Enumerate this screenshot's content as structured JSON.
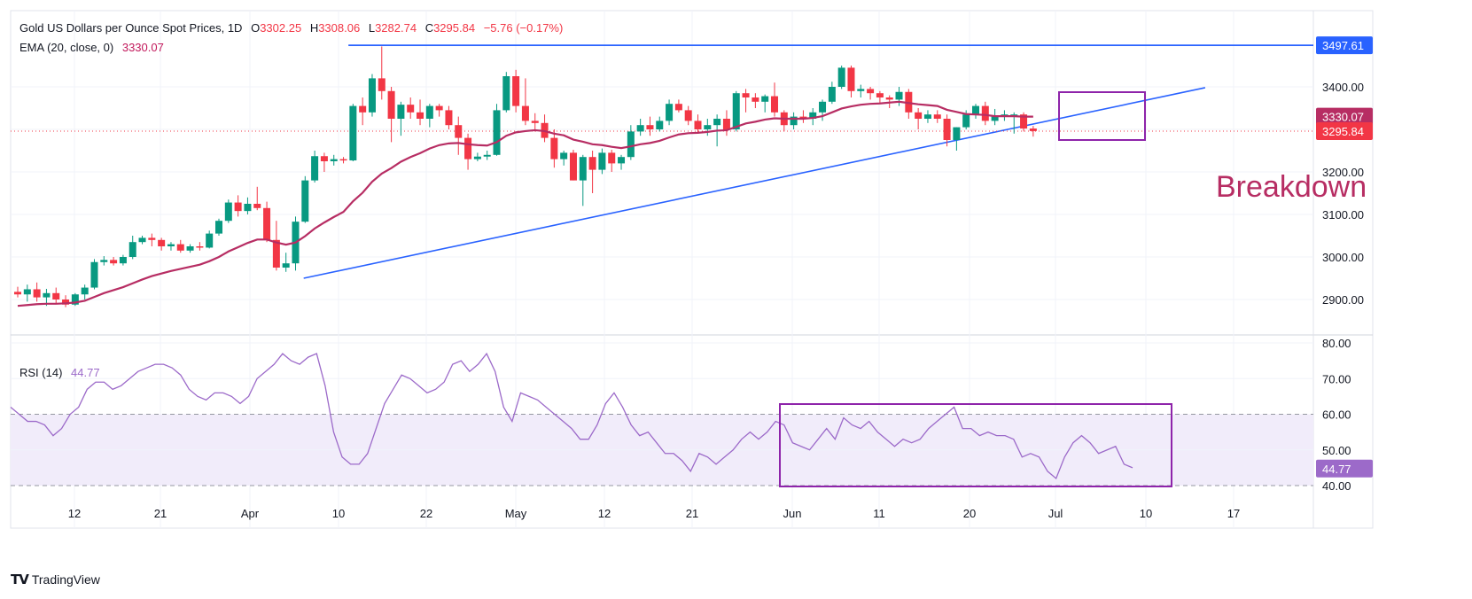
{
  "legend": {
    "title": "Gold US Dollars per Ounce Spot Prices, 1D",
    "o_label": "O",
    "o_value": "3302.25",
    "h_label": "H",
    "h_value": "3308.06",
    "l_label": "L",
    "l_value": "3282.74",
    "c_label": "C",
    "c_value": "3295.84",
    "change": "−5.76 (−0.17%)",
    "ema_label": "EMA (20, close, 0)",
    "ema_value": "3330.07",
    "rsi_label": "RSI (14)",
    "rsi_value": "44.77"
  },
  "annotation": "Breakdown",
  "branding": {
    "logo": "TV",
    "name": "TradingView"
  },
  "colors": {
    "up": "#089981",
    "down": "#f23645",
    "ema": "#b72d63",
    "trendline": "#2962ff",
    "rsi_line": "#9c6ac9",
    "rsi_band": "#f1ecfa",
    "box": "#8e24aa",
    "annotation": "#b72d63"
  },
  "chart_data": [
    {
      "type": "candlestick",
      "title": "Gold US Dollars per Ounce Spot Prices, 1D",
      "x_tick_labels": [
        "12",
        "21",
        "Apr",
        "10",
        "22",
        "May",
        "12",
        "21",
        "Jun",
        "11",
        "20",
        "Jul",
        "10",
        "17"
      ],
      "y_tick_labels": [
        "3400.00",
        "3300.00",
        "3200.00",
        "3100.00",
        "3000.00",
        "2900.00"
      ],
      "ylim": [
        2880,
        3520
      ],
      "grid": true,
      "price_tags": [
        {
          "label": "3497.61",
          "value": 3497.61,
          "color": "#2962ff"
        },
        {
          "label": "3330.07",
          "value": 3330.07,
          "color": "#b72d63"
        },
        {
          "label": "3295.84",
          "value": 3295.84,
          "color": "#f23645"
        }
      ],
      "resistance_line": {
        "value": 3497.61,
        "from_index": 36
      },
      "trendline": {
        "from": [
          28,
          2950
        ],
        "to": [
          111,
          3398
        ]
      },
      "candles": [
        [
          2918,
          2930,
          2905,
          2912
        ],
        [
          2912,
          2935,
          2895,
          2924
        ],
        [
          2924,
          2940,
          2895,
          2905
        ],
        [
          2905,
          2925,
          2885,
          2915
        ],
        [
          2915,
          2928,
          2890,
          2900
        ],
        [
          2900,
          2910,
          2882,
          2888
        ],
        [
          2888,
          2915,
          2885,
          2912
        ],
        [
          2912,
          2935,
          2900,
          2928
        ],
        [
          2928,
          2995,
          2924,
          2988
        ],
        [
          2988,
          3002,
          2980,
          2993
        ],
        [
          2993,
          3000,
          2980,
          2985
        ],
        [
          2985,
          3005,
          2980,
          3000
        ],
        [
          3000,
          3050,
          2995,
          3035
        ],
        [
          3035,
          3050,
          3030,
          3045
        ],
        [
          3045,
          3055,
          3025,
          3040
        ],
        [
          3040,
          3045,
          3015,
          3025
        ],
        [
          3025,
          3035,
          3015,
          3030
        ],
        [
          3030,
          3040,
          3010,
          3015
        ],
        [
          3015,
          3030,
          3010,
          3025
        ],
        [
          3025,
          3035,
          3015,
          3022
        ],
        [
          3022,
          3062,
          3020,
          3055
        ],
        [
          3055,
          3090,
          3050,
          3085
        ],
        [
          3085,
          3135,
          3080,
          3128
        ],
        [
          3128,
          3145,
          3095,
          3108
        ],
        [
          3108,
          3140,
          3100,
          3125
        ],
        [
          3125,
          3165,
          3110,
          3115
        ],
        [
          3115,
          3130,
          3035,
          3040
        ],
        [
          3040,
          3085,
          2968,
          2975
        ],
        [
          2975,
          3010,
          2965,
          2985
        ],
        [
          2985,
          3095,
          2968,
          3083
        ],
        [
          3083,
          3190,
          3080,
          3180
        ],
        [
          3180,
          3250,
          3175,
          3237
        ],
        [
          3237,
          3245,
          3200,
          3225
        ],
        [
          3225,
          3240,
          3215,
          3230
        ],
        [
          3230,
          3235,
          3220,
          3227
        ],
        [
          3227,
          3360,
          3225,
          3355
        ],
        [
          3355,
          3375,
          3310,
          3340
        ],
        [
          3340,
          3430,
          3330,
          3420
        ],
        [
          3420,
          3495,
          3370,
          3390
        ],
        [
          3390,
          3400,
          3270,
          3325
        ],
        [
          3325,
          3365,
          3285,
          3358
        ],
        [
          3358,
          3375,
          3325,
          3340
        ],
        [
          3340,
          3370,
          3310,
          3325
        ],
        [
          3325,
          3360,
          3305,
          3355
        ],
        [
          3355,
          3360,
          3330,
          3345
        ],
        [
          3345,
          3355,
          3300,
          3310
        ],
        [
          3310,
          3330,
          3240,
          3280
        ],
        [
          3280,
          3290,
          3205,
          3230
        ],
        [
          3230,
          3245,
          3225,
          3236
        ],
        [
          3236,
          3250,
          3228,
          3240
        ],
        [
          3240,
          3360,
          3238,
          3345
        ],
        [
          3345,
          3435,
          3340,
          3425
        ],
        [
          3425,
          3440,
          3340,
          3355
        ],
        [
          3355,
          3420,
          3310,
          3320
        ],
        [
          3320,
          3338,
          3295,
          3315
        ],
        [
          3315,
          3335,
          3270,
          3280
        ],
        [
          3280,
          3300,
          3210,
          3230
        ],
        [
          3230,
          3250,
          3215,
          3245
        ],
        [
          3245,
          3252,
          3180,
          3180
        ],
        [
          3180,
          3240,
          3120,
          3235
        ],
        [
          3235,
          3250,
          3150,
          3205
        ],
        [
          3205,
          3255,
          3195,
          3245
        ],
        [
          3245,
          3252,
          3200,
          3220
        ],
        [
          3220,
          3240,
          3205,
          3235
        ],
        [
          3235,
          3310,
          3228,
          3295
        ],
        [
          3295,
          3325,
          3285,
          3310
        ],
        [
          3310,
          3330,
          3285,
          3300
        ],
        [
          3300,
          3330,
          3295,
          3320
        ],
        [
          3320,
          3370,
          3310,
          3360
        ],
        [
          3360,
          3370,
          3340,
          3345
        ],
        [
          3345,
          3355,
          3310,
          3320
        ],
        [
          3320,
          3335,
          3290,
          3300
        ],
        [
          3300,
          3325,
          3285,
          3310
        ],
        [
          3310,
          3335,
          3260,
          3325
        ],
        [
          3325,
          3345,
          3285,
          3300
        ],
        [
          3300,
          3390,
          3295,
          3385
        ],
        [
          3385,
          3395,
          3340,
          3375
        ],
        [
          3375,
          3385,
          3350,
          3365
        ],
        [
          3365,
          3382,
          3340,
          3378
        ],
        [
          3378,
          3410,
          3330,
          3340
        ],
        [
          3340,
          3345,
          3295,
          3310
        ],
        [
          3310,
          3340,
          3300,
          3330
        ],
        [
          3330,
          3345,
          3315,
          3325
        ],
        [
          3325,
          3350,
          3310,
          3340
        ],
        [
          3340,
          3370,
          3320,
          3365
        ],
        [
          3365,
          3412,
          3360,
          3400
        ],
        [
          3400,
          3450,
          3395,
          3445
        ],
        [
          3445,
          3450,
          3375,
          3390
        ],
        [
          3390,
          3405,
          3375,
          3395
        ],
        [
          3395,
          3400,
          3370,
          3385
        ],
        [
          3385,
          3390,
          3360,
          3375
        ],
        [
          3375,
          3380,
          3350,
          3370
        ],
        [
          3370,
          3400,
          3355,
          3388
        ],
        [
          3388,
          3395,
          3325,
          3340
        ],
        [
          3340,
          3350,
          3300,
          3325
        ],
        [
          3325,
          3345,
          3315,
          3335
        ],
        [
          3335,
          3345,
          3315,
          3325
        ],
        [
          3325,
          3335,
          3260,
          3275
        ],
        [
          3275,
          3305,
          3250,
          3305
        ],
        [
          3305,
          3345,
          3300,
          3335
        ],
        [
          3335,
          3360,
          3325,
          3355
        ],
        [
          3355,
          3365,
          3310,
          3320
        ],
        [
          3320,
          3348,
          3310,
          3330
        ],
        [
          3330,
          3345,
          3320,
          3335
        ],
        [
          3335,
          3340,
          3290,
          3335
        ],
        [
          3335,
          3340,
          3295,
          3302
        ],
        [
          3302,
          3308,
          3283,
          3296
        ]
      ],
      "ema_20": [
        2885,
        2887,
        2889,
        2890,
        2890,
        2891,
        2893,
        2897,
        2906,
        2915,
        2922,
        2929,
        2938,
        2947,
        2955,
        2961,
        2967,
        2972,
        2977,
        2982,
        2990,
        3000,
        3013,
        3023,
        3033,
        3041,
        3041,
        3034,
        3029,
        3034,
        3049,
        3067,
        3081,
        3094,
        3106,
        3131,
        3151,
        3177,
        3196,
        3209,
        3224,
        3235,
        3244,
        3255,
        3263,
        3267,
        3268,
        3265,
        3263,
        3262,
        3270,
        3285,
        3293,
        3296,
        3298,
        3296,
        3290,
        3286,
        3276,
        3271,
        3265,
        3263,
        3259,
        3256,
        3260,
        3265,
        3268,
        3273,
        3281,
        3288,
        3291,
        3292,
        3294,
        3297,
        3298,
        3306,
        3314,
        3318,
        3323,
        3326,
        3325,
        3325,
        3325,
        3327,
        3331,
        3340,
        3349,
        3354,
        3358,
        3360,
        3361,
        3363,
        3365,
        3362,
        3359,
        3357,
        3355,
        3346,
        3341,
        3336,
        3335,
        3334,
        3331,
        3331,
        3331,
        3330,
        3330
      ]
    },
    {
      "type": "line",
      "title": "RSI (14)",
      "y_tick_labels": [
        "80.00",
        "70.00",
        "60.00",
        "50.00",
        "40.00"
      ],
      "ylim": [
        38,
        82
      ],
      "band": [
        40,
        60
      ],
      "current": 44.77,
      "series": [
        {
          "values": [
            62,
            60,
            58,
            58,
            57,
            54,
            56,
            60,
            62,
            67,
            69,
            69,
            67,
            68,
            70,
            72,
            73,
            74,
            74,
            73,
            71,
            67,
            65,
            64,
            66,
            66,
            65,
            63,
            65,
            70,
            72,
            74,
            77,
            75,
            74,
            76,
            77,
            68,
            55,
            48,
            46,
            46,
            49,
            56,
            63,
            67,
            71,
            70,
            68,
            66,
            67,
            69,
            74,
            75,
            72,
            74,
            77,
            72,
            62,
            58,
            66,
            65,
            64,
            62,
            60,
            58,
            56,
            53,
            53,
            57,
            63,
            66,
            62,
            57,
            54,
            55,
            52,
            49,
            49,
            47,
            44,
            49,
            48,
            46,
            48,
            50,
            53,
            55,
            53,
            55,
            58,
            57,
            52,
            51,
            50,
            53,
            56,
            53,
            59,
            57,
            56,
            58,
            55,
            53,
            51,
            53,
            52,
            53,
            56,
            58,
            60,
            62,
            56,
            56,
            54,
            55,
            54,
            54,
            53,
            48,
            49,
            48,
            44,
            42,
            48,
            52,
            54,
            52,
            49,
            50,
            51,
            46,
            45
          ]
        }
      ]
    }
  ]
}
